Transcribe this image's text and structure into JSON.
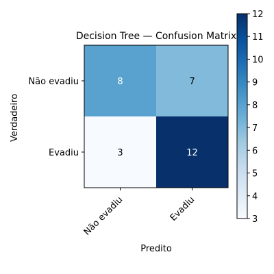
{
  "chart_data": {
    "type": "heatmap",
    "title": "Decision Tree — Confusion Matrix",
    "xlabel": "Predito",
    "ylabel": "Verdadeiro",
    "x_categories": [
      "Não evadiu",
      "Evadiu"
    ],
    "y_categories": [
      "Não evadiu",
      "Evadiu"
    ],
    "values": [
      [
        8,
        7
      ],
      [
        3,
        12
      ]
    ],
    "colormap": "Blues",
    "colorbar": {
      "min": 3,
      "max": 12,
      "ticks": [
        3,
        4,
        5,
        6,
        7,
        8,
        9,
        10,
        11,
        12
      ]
    },
    "grid": false
  }
}
